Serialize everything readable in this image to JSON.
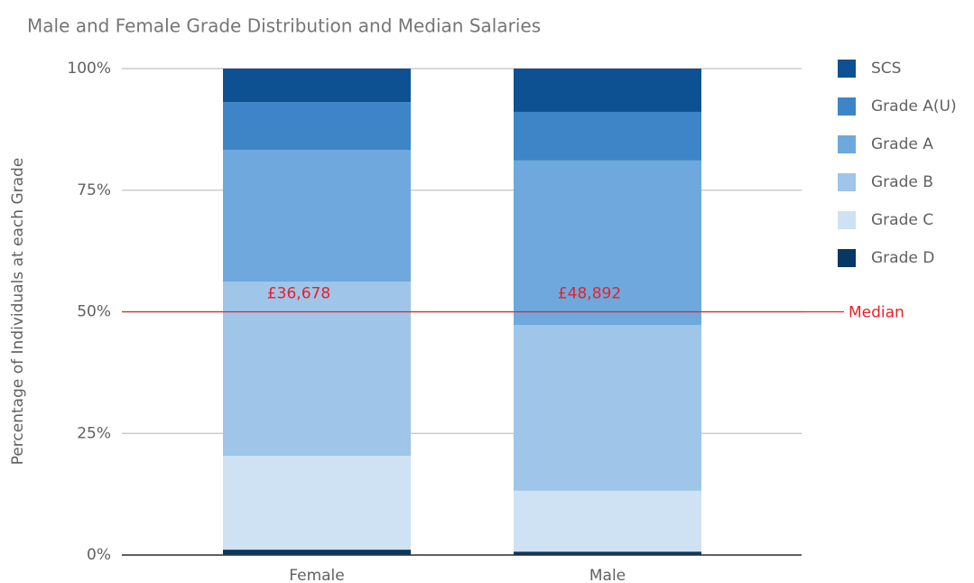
{
  "chart_data": {
    "type": "stacked_bar",
    "title": "Male and Female Grade Distribution and Median Salaries",
    "y_label": "Percentage of Individuals at each Grade",
    "categories": [
      "Female",
      "Male"
    ],
    "series": [
      {
        "name": "Grade D",
        "color": "#073763",
        "values": [
          1.1,
          0.7
        ]
      },
      {
        "name": "Grade C",
        "color": "#cfe2f3",
        "values": [
          19.3,
          12.5
        ]
      },
      {
        "name": "Grade B",
        "color": "#9fc5e8",
        "values": [
          35.8,
          34.1
        ]
      },
      {
        "name": "Grade A",
        "color": "#6fa8dc",
        "values": [
          27.1,
          33.8
        ]
      },
      {
        "name": "Grade A(U)",
        "color": "#3d85c6",
        "values": [
          9.8,
          10.0
        ]
      },
      {
        "name": "SCS",
        "color": "#0d5192",
        "values": [
          6.9,
          8.9
        ]
      }
    ],
    "ylim": [
      0,
      100
    ],
    "yticks": [
      {
        "value": 0,
        "label": "0%"
      },
      {
        "value": 25,
        "label": "25%"
      },
      {
        "value": 50,
        "label": "50%"
      },
      {
        "value": 75,
        "label": "75%"
      },
      {
        "value": 100,
        "label": "100%"
      }
    ],
    "grid": true,
    "legend": "right",
    "median_line": {
      "label": "Median",
      "value": 50,
      "color": "#e8202a"
    },
    "annotations": [
      "£36,678",
      "£48,892"
    ]
  }
}
